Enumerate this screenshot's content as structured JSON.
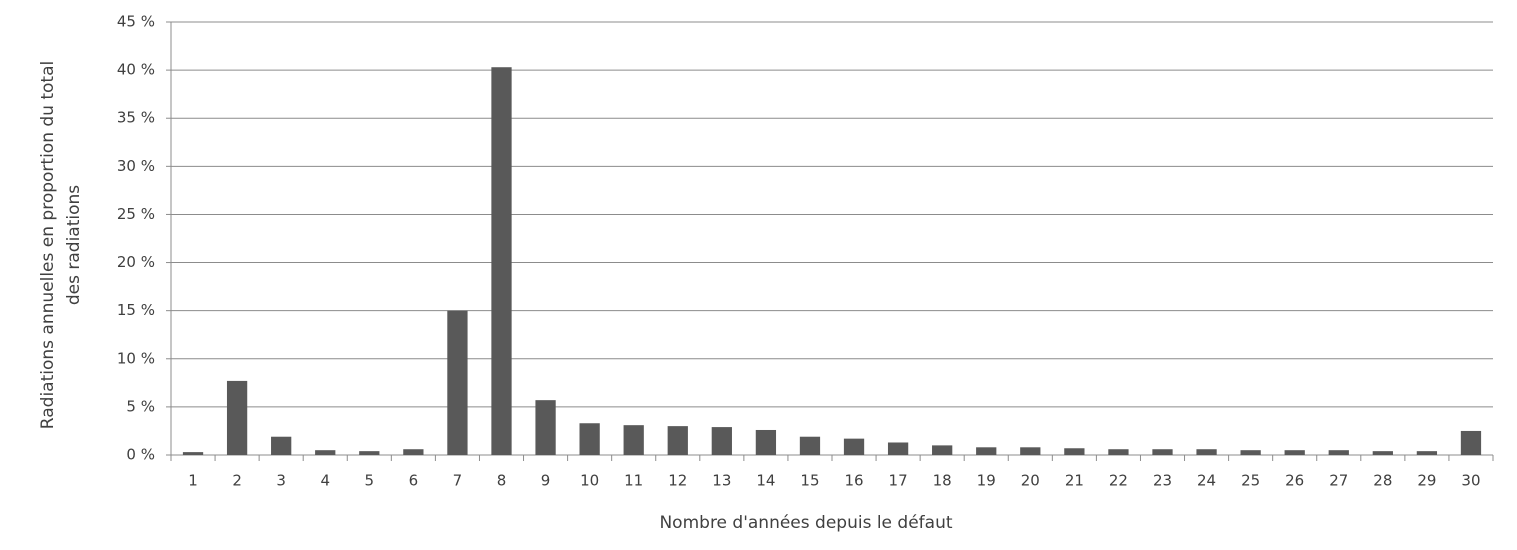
{
  "chart_data": {
    "type": "bar",
    "x_label": "Nombre d'années depuis le défaut",
    "y_label": [
      "Radiations annuelles en proportion du total",
      "des radiations"
    ],
    "categories": [
      "1",
      "2",
      "3",
      "4",
      "5",
      "6",
      "7",
      "8",
      "9",
      "10",
      "11",
      "12",
      "13",
      "14",
      "15",
      "16",
      "17",
      "18",
      "19",
      "20",
      "21",
      "22",
      "23",
      "24",
      "25",
      "26",
      "27",
      "28",
      "29",
      "30"
    ],
    "values": [
      0.3,
      7.7,
      1.9,
      0.5,
      0.4,
      0.6,
      15.0,
      40.3,
      5.7,
      3.3,
      3.1,
      3.0,
      2.9,
      2.6,
      1.9,
      1.7,
      1.3,
      1.0,
      0.8,
      0.8,
      0.7,
      0.6,
      0.6,
      0.6,
      0.5,
      0.5,
      0.5,
      0.4,
      0.4,
      2.5
    ],
    "color": "#595959",
    "ylim": [
      0,
      45
    ],
    "yticks": [
      {
        "value": 0,
        "label": "0 %"
      },
      {
        "value": 5,
        "label": "5 %"
      },
      {
        "value": 10,
        "label": "10 %"
      },
      {
        "value": 15,
        "label": "15 %"
      },
      {
        "value": 20,
        "label": "20 %"
      },
      {
        "value": 25,
        "label": "25 %"
      },
      {
        "value": 30,
        "label": "30 %"
      },
      {
        "value": 35,
        "label": "35 %"
      },
      {
        "value": 40,
        "label": "40 %"
      },
      {
        "value": 45,
        "label": "45 %"
      }
    ],
    "grid": true
  }
}
